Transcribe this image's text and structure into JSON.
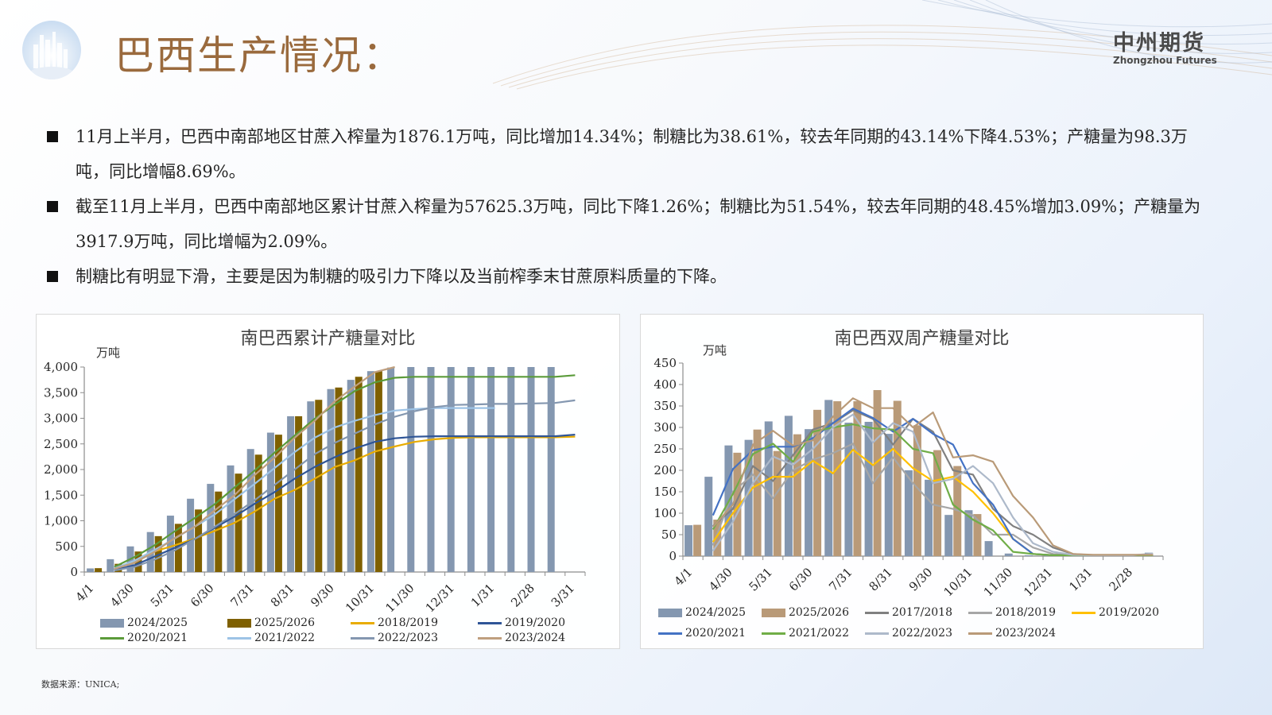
{
  "header": {
    "title": "巴西生产情况：",
    "brand_cn": "中州期货",
    "brand_en": "Zhongzhou Futures"
  },
  "bullets": [
    "11月上半月，巴西中南部地区甘蔗入榨量为1876.1万吨，同比增加14.34%；制糖比为38.61%，较去年同期的43.14%下降4.53%；产糖量为98.3万吨，同比增幅8.69%。",
    "截至11月上半月，巴西中南部地区累计甘蔗入榨量为57625.3万吨，同比下降1.26%；制糖比为51.54%，较去年同期的48.45%增加3.09%；产糖量为3917.9万吨，同比增幅为2.09%。",
    "制糖比有明显下滑，主要是因为制糖的吸引力下降以及当前榨季末甘蔗原料质量的下降。"
  ],
  "source": "数据来源：UNICA;",
  "chart_data": [
    {
      "type": "bar",
      "title": "南巴西累计产糖量对比",
      "ylabel": "万吨",
      "ylim": [
        0,
        4000
      ],
      "yticks": [
        "0",
        "500",
        "1,000",
        "1,500",
        "2,000",
        "2,500",
        "3,000",
        "3,500",
        "4,000"
      ],
      "xtick_labels": [
        "4/1",
        "4/30",
        "5/31",
        "6/30",
        "7/31",
        "8/31",
        "9/30",
        "10/31",
        "11/30",
        "12/31",
        "1/31",
        "2/28",
        "3/31"
      ],
      "points": 25,
      "colors": {
        "2024/2025": "#8497b0",
        "2025/2026": "#7f6000",
        "2018/2019": "#e8ac00",
        "2019/2020": "#2f5597",
        "2020/2021": "#5b9b3a",
        "2021/2022": "#9dc3e6",
        "2022/2023": "#8497b0",
        "2023/2024": "#bf9f7f"
      },
      "series": [
        {
          "name": "2024/2025",
          "kind": "bar",
          "values": [
            70,
            250,
            500,
            780,
            1100,
            1430,
            1720,
            2080,
            2400,
            2720,
            3040,
            3330,
            3570,
            3750,
            3920,
            3990,
            4000,
            4000,
            4000,
            4000,
            4000,
            4000,
            4000,
            4000
          ]
        },
        {
          "name": "2025/2026",
          "kind": "bar",
          "values": [
            75,
            160,
            400,
            700,
            940,
            1220,
            1570,
            1920,
            2290,
            2680,
            3040,
            3360,
            3600,
            3810,
            3918
          ]
        },
        {
          "name": "2018/2019",
          "kind": "line",
          "values": [
            null,
            50,
            200,
            400,
            520,
            650,
            800,
            960,
            1180,
            1430,
            1600,
            1820,
            2050,
            2180,
            2350,
            2450,
            2540,
            2590,
            2620,
            2630,
            2630,
            2630,
            2630,
            2630,
            2640
          ]
        },
        {
          "name": "2019/2020",
          "kind": "line",
          "values": [
            null,
            40,
            130,
            300,
            470,
            640,
            860,
            1080,
            1330,
            1560,
            1820,
            2050,
            2240,
            2410,
            2540,
            2610,
            2640,
            2650,
            2650,
            2650,
            2650,
            2650,
            2650,
            2650,
            2680
          ]
        },
        {
          "name": "2020/2021",
          "kind": "line",
          "values": [
            null,
            100,
            290,
            520,
            790,
            1050,
            1320,
            1650,
            1980,
            2330,
            2660,
            2990,
            3270,
            3530,
            3700,
            3790,
            3810,
            3810,
            3810,
            3810,
            3810,
            3810,
            3810,
            3810,
            3840
          ]
        },
        {
          "name": "2021/2022",
          "kind": "line",
          "values": [
            null,
            70,
            220,
            430,
            650,
            880,
            1120,
            1420,
            1720,
            2030,
            2340,
            2620,
            2820,
            2950,
            3060,
            3150,
            3180,
            3200,
            3200,
            3200,
            3200
          ]
        },
        {
          "name": "2022/2023",
          "kind": "line",
          "values": [
            null,
            30,
            100,
            240,
            420,
            640,
            880,
            1130,
            1400,
            1700,
            2000,
            2300,
            2520,
            2700,
            2880,
            3030,
            3140,
            3220,
            3260,
            3270,
            3280,
            3280,
            3290,
            3300,
            3350
          ]
        },
        {
          "name": "2023/2024",
          "kind": "line",
          "values": [
            null,
            60,
            180,
            390,
            660,
            880,
            1200,
            1500,
            1890,
            2230,
            2620,
            2950,
            3330,
            3620,
            3900,
            4100
          ]
        }
      ],
      "legend_position": "bottom"
    },
    {
      "type": "bar",
      "title": "南巴西双周产糖量对比",
      "ylabel": "万吨",
      "ylim": [
        0,
        450
      ],
      "yticks": [
        "0",
        "50",
        "100",
        "150",
        "200",
        "250",
        "300",
        "350",
        "400",
        "450"
      ],
      "xtick_labels": [
        "4/1",
        "4/30",
        "5/31",
        "6/30",
        "7/31",
        "8/31",
        "9/30",
        "10/31",
        "11/30",
        "12/31",
        "1/31",
        "2/28"
      ],
      "points": 24,
      "colors": {
        "2024/2025": "#8497b0",
        "2025/2026": "#b99a78",
        "2017/2018": "#808080",
        "2018/2019": "#a6a6a6",
        "2019/2020": "#ffc000",
        "2020/2021": "#4472c4",
        "2021/2022": "#70ad47",
        "2022/2023": "#adb9ca",
        "2023/2024": "#b99a78"
      },
      "series": [
        {
          "name": "2024/2025",
          "kind": "bar",
          "values": [
            72,
            185,
            258,
            271,
            314,
            327,
            296,
            364,
            311,
            313,
            285,
            200,
            178,
            96,
            107,
            35,
            6,
            2,
            1,
            1,
            1,
            1,
            1,
            8
          ]
        },
        {
          "name": "2025/2026",
          "kind": "bar",
          "values": [
            73,
            85,
            241,
            295,
            245,
            284,
            341,
            361,
            361,
            387,
            362,
            305,
            247,
            210,
            98
          ]
        },
        {
          "name": "2017/2018",
          "kind": "line",
          "values": [
            null,
            70,
            110,
            210,
            175,
            235,
            295,
            310,
            340,
            320,
            260,
            320,
            290,
            200,
            190,
            110,
            70,
            50,
            20,
            5,
            2,
            2,
            2,
            2
          ]
        },
        {
          "name": "2018/2019",
          "kind": "line",
          "values": [
            null,
            25,
            150,
            190,
            135,
            200,
            225,
            240,
            262,
            170,
            230,
            170,
            120,
            110,
            95,
            50,
            50,
            20,
            5,
            2,
            2,
            2,
            2,
            2
          ]
        },
        {
          "name": "2019/2020",
          "kind": "line",
          "values": [
            null,
            33,
            100,
            160,
            185,
            185,
            222,
            193,
            248,
            212,
            250,
            205,
            175,
            185,
            150,
            100,
            40,
            5,
            2,
            2,
            2,
            2,
            2,
            2
          ]
        },
        {
          "name": "2020/2021",
          "kind": "line",
          "values": [
            null,
            95,
            203,
            247,
            255,
            255,
            275,
            310,
            344,
            322,
            290,
            320,
            285,
            260,
            170,
            120,
            40,
            5,
            2,
            2,
            2,
            2,
            2,
            2
          ]
        },
        {
          "name": "2021/2022",
          "kind": "line",
          "values": [
            null,
            62,
            145,
            238,
            262,
            220,
            290,
            300,
            307,
            298,
            295,
            250,
            240,
            120,
            85,
            60,
            10,
            5,
            2,
            2,
            2,
            2,
            2,
            2
          ]
        },
        {
          "name": "2022/2023",
          "kind": "line",
          "values": [
            null,
            12,
            80,
            170,
            232,
            213,
            250,
            300,
            330,
            265,
            310,
            290,
            170,
            180,
            210,
            170,
            90,
            30,
            10,
            3,
            2,
            2,
            2,
            6
          ]
        },
        {
          "name": "2023/2024",
          "kind": "line",
          "values": [
            null,
            68,
            120,
            260,
            292,
            258,
            270,
            325,
            368,
            345,
            345,
            300,
            335,
            230,
            235,
            220,
            140,
            90,
            25,
            5,
            3,
            3,
            3,
            3
          ]
        }
      ],
      "legend_position": "bottom"
    }
  ]
}
